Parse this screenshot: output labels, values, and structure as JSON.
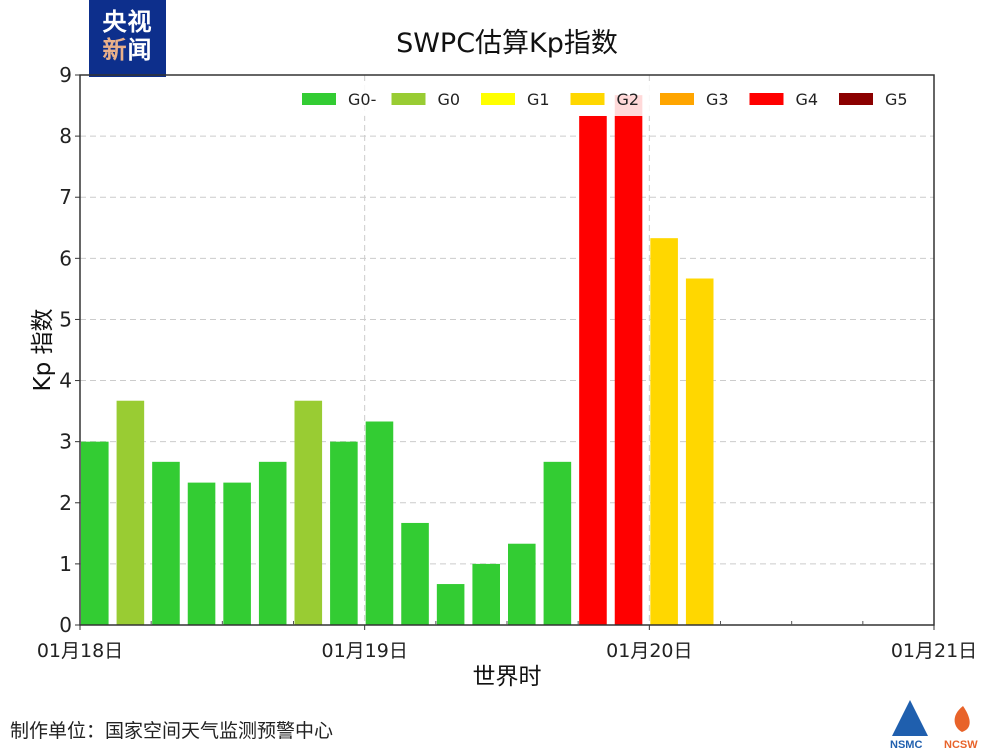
{
  "logo": {
    "line1": "央视",
    "line2a": "新",
    "line2b": "闻"
  },
  "credit": "制作单位：国家空间天气监测预警中心",
  "footer_logos": [
    "NSMC",
    "NCSW"
  ],
  "chart_data": {
    "type": "bar",
    "title": "SWPC估算Kp指数",
    "xlabel": "世界时",
    "ylabel": "Kp 指数",
    "ylim": [
      0,
      9
    ],
    "yticks": [
      0,
      1,
      2,
      3,
      4,
      5,
      6,
      7,
      8,
      9
    ],
    "xticks": [
      "01月18日",
      "01月19日",
      "01月20日",
      "01月21日"
    ],
    "x_interval_hours": 3,
    "grid": true,
    "legend_position": "top-right",
    "legend": [
      {
        "name": "G0-",
        "color": "#33cc33"
      },
      {
        "name": "G0",
        "color": "#99cc33"
      },
      {
        "name": "G1",
        "color": "#ffff00"
      },
      {
        "name": "G2",
        "color": "#ffd700"
      },
      {
        "name": "G3",
        "color": "#ffa500"
      },
      {
        "name": "G4",
        "color": "#ff0000"
      },
      {
        "name": "G5",
        "color": "#8b0000"
      }
    ],
    "values": [
      3.0,
      3.67,
      2.67,
      2.33,
      2.33,
      2.67,
      3.67,
      3.0,
      3.33,
      1.67,
      0.67,
      1.0,
      1.33,
      2.67,
      8.33,
      8.67,
      6.33,
      5.67
    ],
    "levels": [
      "G0-",
      "G0",
      "G0-",
      "G0-",
      "G0-",
      "G0-",
      "G0",
      "G0-",
      "G0-",
      "G0-",
      "G0-",
      "G0-",
      "G0-",
      "G0-",
      "G4",
      "G4",
      "G2",
      "G2"
    ]
  }
}
